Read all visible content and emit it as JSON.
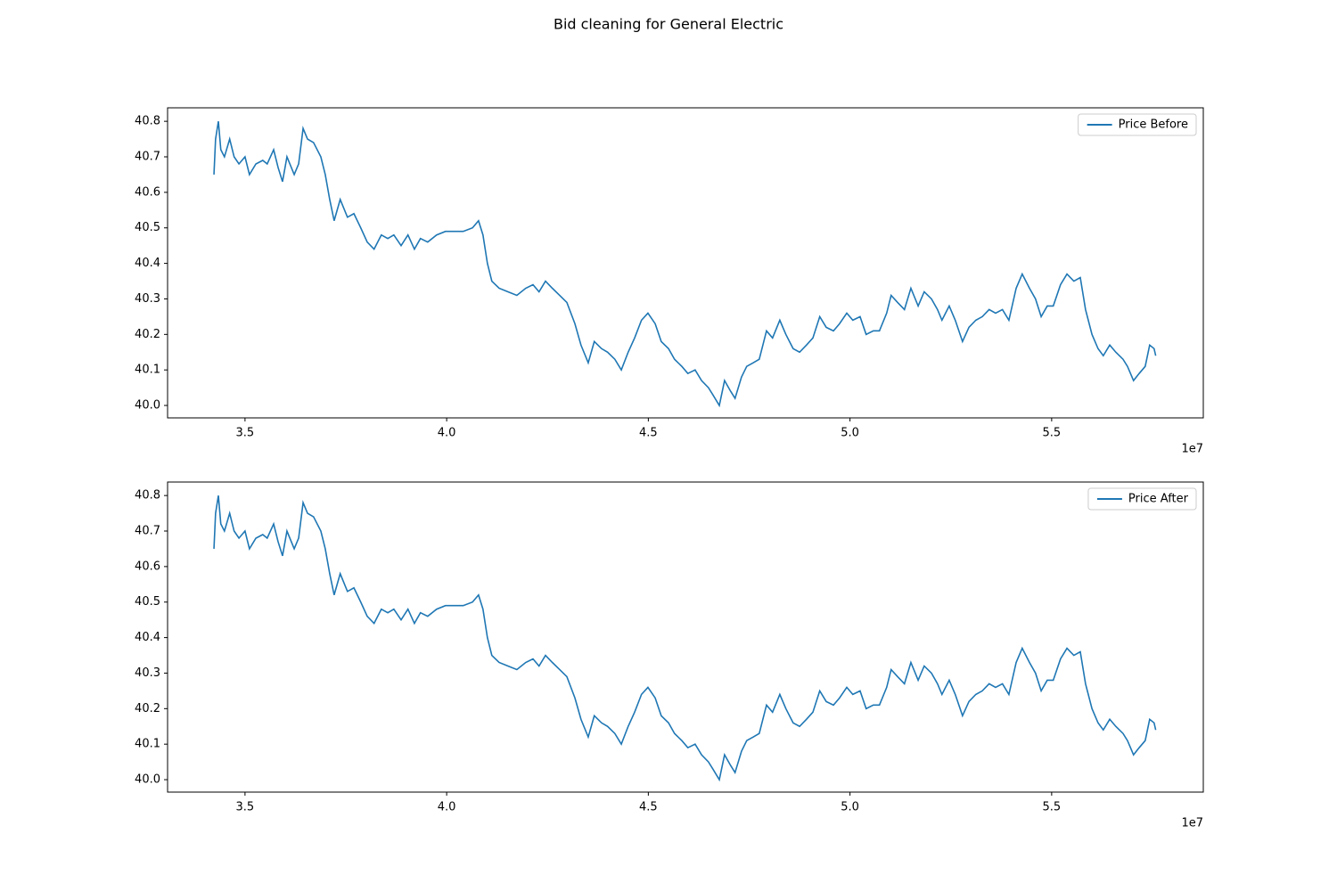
{
  "title": "Bid cleaning for General Electric",
  "chart_data": [
    {
      "type": "line",
      "x": [
        3.423,
        3.427,
        3.434,
        3.44,
        3.449,
        3.462,
        3.473,
        3.485,
        3.5,
        3.511,
        3.527,
        3.544,
        3.555,
        3.571,
        3.582,
        3.593,
        3.604,
        3.622,
        3.633,
        3.644,
        3.655,
        3.67,
        3.688,
        3.699,
        3.71,
        3.721,
        3.736,
        3.754,
        3.77,
        3.787,
        3.803,
        3.82,
        3.838,
        3.854,
        3.869,
        3.887,
        3.904,
        3.92,
        3.935,
        3.953,
        3.975,
        3.997,
        4.019,
        4.041,
        4.064,
        4.079,
        4.09,
        4.101,
        4.112,
        4.13,
        4.152,
        4.174,
        4.196,
        4.214,
        4.229,
        4.245,
        4.262,
        4.28,
        4.298,
        4.318,
        4.333,
        4.351,
        4.366,
        4.384,
        4.399,
        4.417,
        4.433,
        4.45,
        4.466,
        4.483,
        4.499,
        4.517,
        4.532,
        4.55,
        4.565,
        4.583,
        4.598,
        4.616,
        4.632,
        4.649,
        4.66,
        4.676,
        4.689,
        4.704,
        4.715,
        4.731,
        4.744,
        4.76,
        4.775,
        4.793,
        4.808,
        4.826,
        4.841,
        4.859,
        4.875,
        4.892,
        4.908,
        4.925,
        4.941,
        4.959,
        4.974,
        4.992,
        5.007,
        5.025,
        5.04,
        5.058,
        5.073,
        5.091,
        5.102,
        5.118,
        5.135,
        5.151,
        5.169,
        5.184,
        5.202,
        5.217,
        5.228,
        5.246,
        5.261,
        5.279,
        5.295,
        5.312,
        5.328,
        5.345,
        5.361,
        5.378,
        5.394,
        5.412,
        5.427,
        5.445,
        5.46,
        5.474,
        5.489,
        5.504,
        5.522,
        5.538,
        5.555,
        5.571,
        5.584,
        5.6,
        5.615,
        5.628,
        5.644,
        5.659,
        5.677,
        5.688,
        5.703,
        5.717,
        5.732,
        5.743,
        5.754,
        5.758
      ],
      "series": [
        {
          "name": "Price Before",
          "color": "#1f77b4",
          "values": [
            40.65,
            40.75,
            40.8,
            40.72,
            40.7,
            40.75,
            40.7,
            40.68,
            40.7,
            40.65,
            40.68,
            40.69,
            40.68,
            40.72,
            40.67,
            40.63,
            40.7,
            40.65,
            40.68,
            40.78,
            40.75,
            40.74,
            40.7,
            40.65,
            40.58,
            40.52,
            40.58,
            40.53,
            40.54,
            40.5,
            40.46,
            40.44,
            40.48,
            40.47,
            40.48,
            40.45,
            40.48,
            40.44,
            40.47,
            40.46,
            40.48,
            40.49,
            40.49,
            40.49,
            40.5,
            40.52,
            40.48,
            40.4,
            40.35,
            40.33,
            40.32,
            40.31,
            40.33,
            40.34,
            40.32,
            40.35,
            40.33,
            40.31,
            40.29,
            40.23,
            40.17,
            40.12,
            40.18,
            40.16,
            40.15,
            40.13,
            40.1,
            40.15,
            40.19,
            40.24,
            40.26,
            40.23,
            40.18,
            40.16,
            40.13,
            40.11,
            40.09,
            40.1,
            40.07,
            40.05,
            40.03,
            40.0,
            40.07,
            40.04,
            40.02,
            40.08,
            40.11,
            40.12,
            40.13,
            40.21,
            40.19,
            40.24,
            40.2,
            40.16,
            40.15,
            40.17,
            40.19,
            40.25,
            40.22,
            40.21,
            40.23,
            40.26,
            40.24,
            40.25,
            40.2,
            40.21,
            40.21,
            40.26,
            40.31,
            40.29,
            40.27,
            40.33,
            40.28,
            40.32,
            40.3,
            40.27,
            40.24,
            40.28,
            40.24,
            40.18,
            40.22,
            40.24,
            40.25,
            40.27,
            40.26,
            40.27,
            40.24,
            40.33,
            40.37,
            40.33,
            40.3,
            40.25,
            40.28,
            40.28,
            40.34,
            40.37,
            40.35,
            40.36,
            40.27,
            40.2,
            40.16,
            40.14,
            40.17,
            40.15,
            40.13,
            40.11,
            40.07,
            40.09,
            40.11,
            40.17,
            40.16,
            40.14
          ]
        }
      ],
      "xlim": [
        3.308,
        5.876
      ],
      "ylim": [
        39.965,
        40.838
      ],
      "xticks": [
        3.5,
        {
          "value": 4,
          "label": "4.0"
        },
        4.5,
        {
          "value": 5,
          "label": "5.0"
        },
        5.5
      ],
      "yticks": [
        {
          "value": 40,
          "label": "40.0"
        },
        40.1,
        40.2,
        40.3,
        40.4,
        40.5,
        40.6,
        40.7,
        40.8
      ],
      "x_offset_label": "1e7",
      "legend": "upper right"
    },
    {
      "type": "line",
      "x": [
        3.423,
        3.427,
        3.434,
        3.44,
        3.449,
        3.462,
        3.473,
        3.485,
        3.5,
        3.511,
        3.527,
        3.544,
        3.555,
        3.571,
        3.582,
        3.593,
        3.604,
        3.622,
        3.633,
        3.644,
        3.655,
        3.67,
        3.688,
        3.699,
        3.71,
        3.721,
        3.736,
        3.754,
        3.77,
        3.787,
        3.803,
        3.82,
        3.838,
        3.854,
        3.869,
        3.887,
        3.904,
        3.92,
        3.935,
        3.953,
        3.975,
        3.997,
        4.019,
        4.041,
        4.064,
        4.079,
        4.09,
        4.101,
        4.112,
        4.13,
        4.152,
        4.174,
        4.196,
        4.214,
        4.229,
        4.245,
        4.262,
        4.28,
        4.298,
        4.318,
        4.333,
        4.351,
        4.366,
        4.384,
        4.399,
        4.417,
        4.433,
        4.45,
        4.466,
        4.483,
        4.499,
        4.517,
        4.532,
        4.55,
        4.565,
        4.583,
        4.598,
        4.616,
        4.632,
        4.649,
        4.66,
        4.676,
        4.689,
        4.704,
        4.715,
        4.731,
        4.744,
        4.76,
        4.775,
        4.793,
        4.808,
        4.826,
        4.841,
        4.859,
        4.875,
        4.892,
        4.908,
        4.925,
        4.941,
        4.959,
        4.974,
        4.992,
        5.007,
        5.025,
        5.04,
        5.058,
        5.073,
        5.091,
        5.102,
        5.118,
        5.135,
        5.151,
        5.169,
        5.184,
        5.202,
        5.217,
        5.228,
        5.246,
        5.261,
        5.279,
        5.295,
        5.312,
        5.328,
        5.345,
        5.361,
        5.378,
        5.394,
        5.412,
        5.427,
        5.445,
        5.46,
        5.474,
        5.489,
        5.504,
        5.522,
        5.538,
        5.555,
        5.571,
        5.584,
        5.6,
        5.615,
        5.628,
        5.644,
        5.659,
        5.677,
        5.688,
        5.703,
        5.717,
        5.732,
        5.743,
        5.754,
        5.758
      ],
      "series": [
        {
          "name": "Price After",
          "color": "#1f77b4",
          "values": [
            40.65,
            40.75,
            40.8,
            40.72,
            40.7,
            40.75,
            40.7,
            40.68,
            40.7,
            40.65,
            40.68,
            40.69,
            40.68,
            40.72,
            40.67,
            40.63,
            40.7,
            40.65,
            40.68,
            40.78,
            40.75,
            40.74,
            40.7,
            40.65,
            40.58,
            40.52,
            40.58,
            40.53,
            40.54,
            40.5,
            40.46,
            40.44,
            40.48,
            40.47,
            40.48,
            40.45,
            40.48,
            40.44,
            40.47,
            40.46,
            40.48,
            40.49,
            40.49,
            40.49,
            40.5,
            40.52,
            40.48,
            40.4,
            40.35,
            40.33,
            40.32,
            40.31,
            40.33,
            40.34,
            40.32,
            40.35,
            40.33,
            40.31,
            40.29,
            40.23,
            40.17,
            40.12,
            40.18,
            40.16,
            40.15,
            40.13,
            40.1,
            40.15,
            40.19,
            40.24,
            40.26,
            40.23,
            40.18,
            40.16,
            40.13,
            40.11,
            40.09,
            40.1,
            40.07,
            40.05,
            40.03,
            40.0,
            40.07,
            40.04,
            40.02,
            40.08,
            40.11,
            40.12,
            40.13,
            40.21,
            40.19,
            40.24,
            40.2,
            40.16,
            40.15,
            40.17,
            40.19,
            40.25,
            40.22,
            40.21,
            40.23,
            40.26,
            40.24,
            40.25,
            40.2,
            40.21,
            40.21,
            40.26,
            40.31,
            40.29,
            40.27,
            40.33,
            40.28,
            40.32,
            40.3,
            40.27,
            40.24,
            40.28,
            40.24,
            40.18,
            40.22,
            40.24,
            40.25,
            40.27,
            40.26,
            40.27,
            40.24,
            40.33,
            40.37,
            40.33,
            40.3,
            40.25,
            40.28,
            40.28,
            40.34,
            40.37,
            40.35,
            40.36,
            40.27,
            40.2,
            40.16,
            40.14,
            40.17,
            40.15,
            40.13,
            40.11,
            40.07,
            40.09,
            40.11,
            40.17,
            40.16,
            40.14
          ]
        }
      ],
      "xlim": [
        3.308,
        5.876
      ],
      "ylim": [
        39.965,
        40.838
      ],
      "xticks": [
        3.5,
        {
          "value": 4,
          "label": "4.0"
        },
        4.5,
        {
          "value": 5,
          "label": "5.0"
        },
        5.5
      ],
      "yticks": [
        {
          "value": 40,
          "label": "40.0"
        },
        40.1,
        40.2,
        40.3,
        40.4,
        40.5,
        40.6,
        40.7,
        40.8
      ],
      "x_offset_label": "1e7",
      "legend": "upper right"
    }
  ]
}
